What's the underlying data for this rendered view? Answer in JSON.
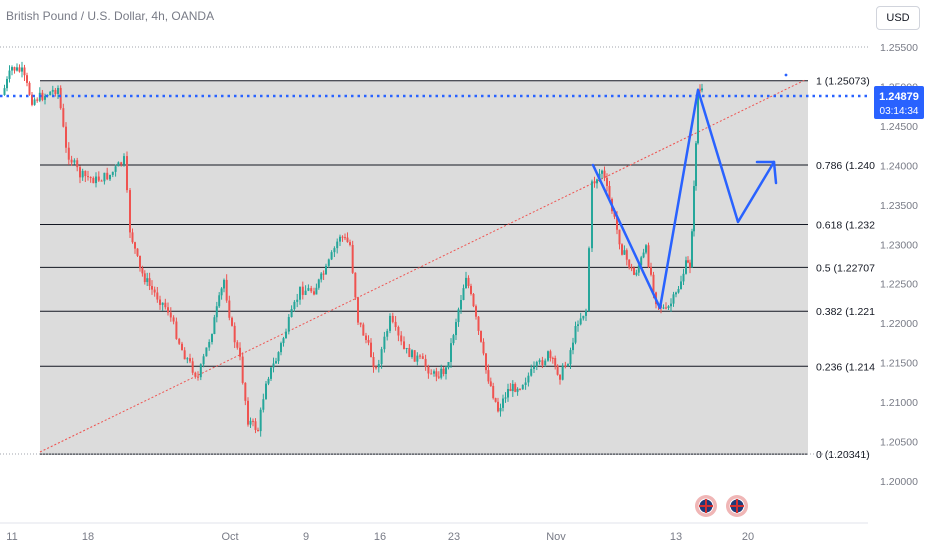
{
  "header": {
    "title": "British Pound / U.S. Dollar, 4h, OANDA",
    "currency_button": "USD"
  },
  "price_tag": {
    "price": "1.24879",
    "countdown": "03:14:34"
  },
  "colors": {
    "up": "#26a69a",
    "down": "#ef5350",
    "fib_fill": "#dcdcdc",
    "arrow": "#2962ff",
    "trendline": "#ef5350",
    "price_line": "#2962ff"
  },
  "chart_data": {
    "type": "candlestick",
    "title": "British Pound / U.S. Dollar, 4h, OANDA",
    "y_axis": {
      "range": [
        1.1975,
        1.2572
      ],
      "ticks": [
        "1.25500",
        "1.25000",
        "1.24500",
        "1.24000",
        "1.23500",
        "1.23000",
        "1.22500",
        "1.22000",
        "1.21500",
        "1.21000",
        "1.20500",
        "1.20000"
      ]
    },
    "x_axis": {
      "ticks": [
        "11",
        "18",
        "Oct",
        "9",
        "16",
        "23",
        "Nov",
        "13",
        "20"
      ]
    },
    "last_price": 1.24879,
    "fibonacci": {
      "levels": [
        {
          "ratio": "1",
          "price": 1.25073,
          "label": "1 (1.25073)"
        },
        {
          "ratio": "0.786",
          "price": 1.24005,
          "label": "0.786 (1.240"
        },
        {
          "ratio": "0.618",
          "price": 1.23251,
          "label": "0.618 (1.232"
        },
        {
          "ratio": "0.5",
          "price": 1.22707,
          "label": "0.5 (1.22707"
        },
        {
          "ratio": "0.382",
          "price": 1.22152,
          "label": "0.382 (1.221"
        },
        {
          "ratio": "0.236",
          "price": 1.21454,
          "label": "0.236 (1.214"
        },
        {
          "ratio": "0",
          "price": 1.20341,
          "label": "0 (1.20341)"
        }
      ]
    },
    "price_path": [
      {
        "x": "11",
        "y": 1.25
      },
      {
        "x": "18",
        "y": 1.246
      },
      {
        "x": "18",
        "y": 1.239
      },
      {
        "x": "18",
        "y": 1.225
      },
      {
        "x": "18",
        "y": 1.215
      },
      {
        "x": "Oct",
        "y": 1.225
      },
      {
        "x": "Oct",
        "y": 1.206
      },
      {
        "x": "9",
        "y": 1.22
      },
      {
        "x": "9",
        "y": 1.23
      },
      {
        "x": "16",
        "y": 1.215
      },
      {
        "x": "16",
        "y": 1.22
      },
      {
        "x": "23",
        "y": 1.212
      },
      {
        "x": "23",
        "y": 1.226
      },
      {
        "x": "23",
        "y": 1.211
      },
      {
        "x": "Nov",
        "y": 1.208
      },
      {
        "x": "Nov",
        "y": 1.218
      },
      {
        "x": "Nov",
        "y": 1.239
      },
      {
        "x": "Nov",
        "y": 1.227
      },
      {
        "x": "13",
        "y": 1.222
      },
      {
        "x": "13",
        "y": 1.227
      },
      {
        "x": "13",
        "y": 1.25
      },
      {
        "x": "13",
        "y": 1.2488
      }
    ]
  }
}
